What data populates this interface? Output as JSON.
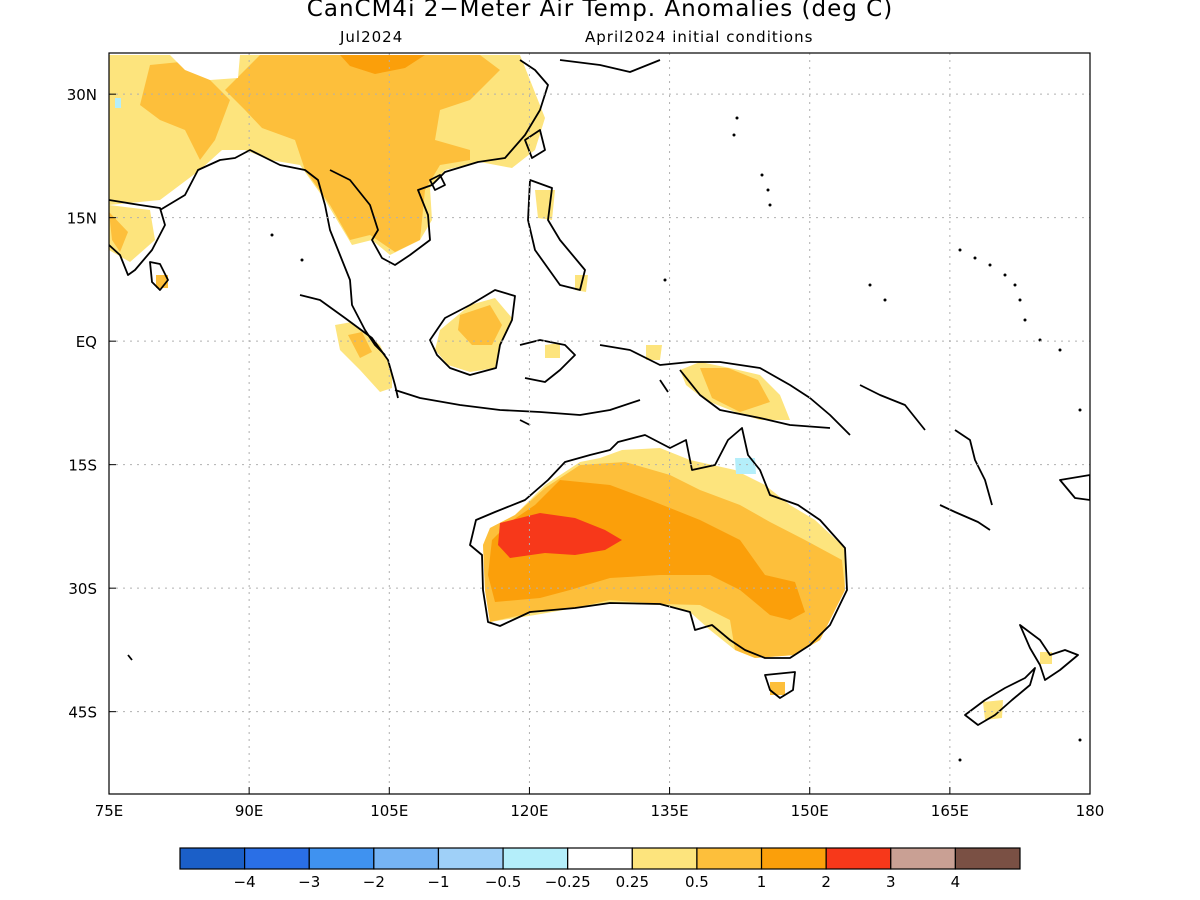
{
  "header": {
    "title": "CanCM4i 2−Meter Air Temp. Anomalies (deg C)",
    "valid_month": "Jul2024",
    "initial_conditions": "April2024 initial conditions"
  },
  "axes": {
    "lon_ticks": [
      "75E",
      "90E",
      "105E",
      "120E",
      "135E",
      "150E",
      "165E",
      "180"
    ],
    "lat_ticks": [
      "30N",
      "15N",
      "EQ",
      "15S",
      "30S",
      "45S"
    ],
    "lon_range": [
      75,
      180
    ],
    "lat_range": [
      -55,
      35
    ],
    "grid": true
  },
  "colorbar": {
    "colors": [
      "#1b5fc8",
      "#2a6fe6",
      "#3f92f0",
      "#76b4f4",
      "#9fd0f8",
      "#b4eefa",
      "#ffffff",
      "#fde47d",
      "#fdbf3b",
      "#fb9f0a",
      "#f7381a",
      "#c9a094",
      "#7a5044"
    ],
    "labels": [
      "−4",
      "−3",
      "−2",
      "−1",
      "−0.5",
      "−0.25",
      "0.25",
      "0.5",
      "1",
      "2",
      "3",
      "4"
    ]
  }
}
